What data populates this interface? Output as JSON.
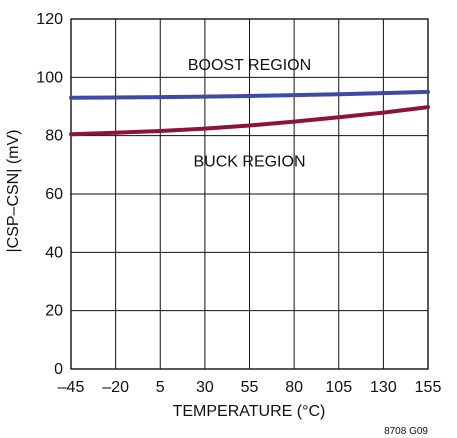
{
  "chart_data": {
    "type": "line",
    "title": "",
    "xlabel": "TEMPERATURE (°C)",
    "ylabel": "|CSP–CSN| (mV)",
    "xlim": [
      -45,
      155
    ],
    "ylim": [
      0,
      120
    ],
    "grid": true,
    "x_ticks": [
      -45,
      -20,
      5,
      30,
      55,
      80,
      105,
      130,
      155
    ],
    "y_ticks": [
      0,
      20,
      40,
      60,
      80,
      100,
      120
    ],
    "x_tick_labels": [
      "–45",
      "–20",
      "5",
      "30",
      "55",
      "80",
      "105",
      "130",
      "155"
    ],
    "y_tick_labels": [
      "0",
      "20",
      "40",
      "60",
      "80",
      "100",
      "120"
    ],
    "series": [
      {
        "region": "boost",
        "color": "#3f4aa0",
        "x": [
          -45,
          -20,
          5,
          30,
          55,
          80,
          105,
          130,
          155
        ],
        "values": [
          93,
          93.1,
          93.2,
          93.4,
          93.6,
          93.9,
          94.2,
          94.6,
          95
        ]
      },
      {
        "region": "buck",
        "color": "#8b1538",
        "x": [
          -45,
          -20,
          5,
          30,
          55,
          80,
          105,
          130,
          155
        ],
        "values": [
          80.5,
          81,
          81.6,
          82.4,
          83.5,
          84.8,
          86.3,
          87.9,
          89.8
        ]
      }
    ],
    "annotations": [
      {
        "text": "BOOST REGION",
        "x": 55,
        "y": 102.5
      },
      {
        "text": "BUCK REGION",
        "x": 55,
        "y": 69.5
      }
    ],
    "figure_id": "8708 G09"
  }
}
